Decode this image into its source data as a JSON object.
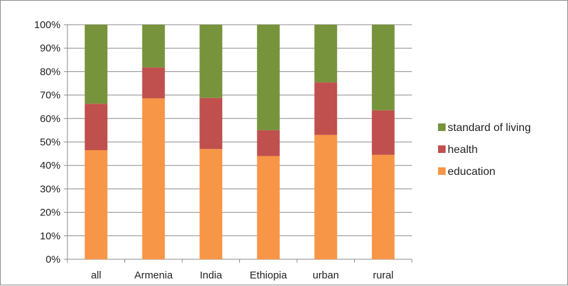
{
  "chart_data": {
    "type": "bar",
    "stacked": true,
    "categories": [
      "all",
      "Armenia",
      "India",
      "Ethiopia",
      "urban",
      "rural"
    ],
    "series": [
      {
        "name": "education",
        "color": "#f79646",
        "values": [
          46.5,
          68.6,
          47.0,
          44.0,
          53.0,
          44.5
        ]
      },
      {
        "name": "health",
        "color": "#c0504d",
        "values": [
          19.8,
          13.2,
          21.8,
          11.0,
          22.4,
          19.0
        ]
      },
      {
        "name": "standard of living",
        "color": "#77933c",
        "values": [
          33.7,
          18.2,
          31.2,
          45.0,
          24.6,
          36.5
        ]
      }
    ],
    "yticks": [
      "0%",
      "10%",
      "20%",
      "30%",
      "40%",
      "50%",
      "60%",
      "70%",
      "80%",
      "90%",
      "100%"
    ],
    "ylim": [
      0,
      100
    ],
    "grid": true,
    "legend": {
      "placement": "right",
      "order": [
        "standard of living",
        "health",
        "education"
      ]
    }
  }
}
